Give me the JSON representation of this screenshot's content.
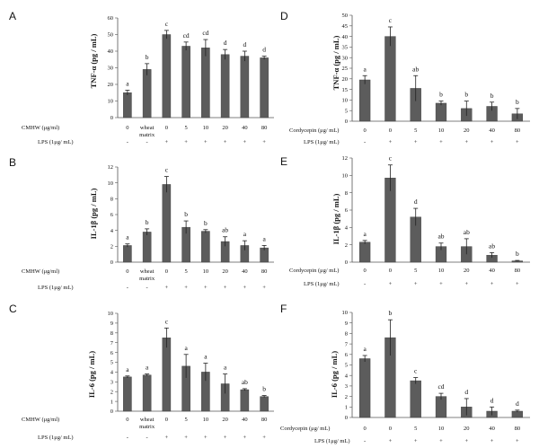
{
  "chart_data": [
    {
      "type": "bar",
      "panel": "A",
      "ylabel": "TNF-α (pg / mL)",
      "ylim": [
        0,
        60
      ],
      "yticks": [
        0,
        10,
        20,
        30,
        40,
        50,
        60
      ],
      "dose_label": "CMHW (μg/ml)",
      "dose_values": [
        "0",
        "wheat\nmatrix",
        "0",
        "5",
        "10",
        "20",
        "40",
        "80"
      ],
      "lps_label": "LPS (1μg/ mL)",
      "lps_values": [
        "-",
        "-",
        "+",
        "+",
        "+",
        "+",
        "+",
        "+"
      ],
      "values": [
        15,
        29,
        50,
        43,
        42,
        38,
        37,
        36
      ],
      "errors": [
        1.5,
        3.5,
        2.5,
        2.5,
        5,
        3,
        3,
        1
      ],
      "letters": [
        "a",
        "b",
        "c",
        "cd",
        "cd",
        "d",
        "d",
        "d"
      ]
    },
    {
      "type": "bar",
      "panel": "B",
      "ylabel": "IL-1β (pg / mL)",
      "ylim": [
        0,
        12
      ],
      "yticks": [
        0,
        2,
        4,
        6,
        8,
        10,
        12
      ],
      "dose_label": "CMHW (μg/ml)",
      "dose_values": [
        "0",
        "wheat\nmatrix",
        "0",
        "5",
        "10",
        "20",
        "40",
        "80"
      ],
      "lps_label": "LPS (1μg/ mL)",
      "lps_values": [
        "-",
        "-",
        "+",
        "+",
        "+",
        "+",
        "+",
        "+"
      ],
      "values": [
        2.1,
        3.8,
        9.8,
        4.4,
        3.9,
        2.6,
        2.1,
        1.8
      ],
      "errors": [
        0.2,
        0.4,
        1.0,
        0.8,
        0.2,
        0.6,
        0.6,
        0.3
      ],
      "letters": [
        "a",
        "b",
        "c",
        "b",
        "b",
        "ab",
        "a",
        "a"
      ]
    },
    {
      "type": "bar",
      "panel": "C",
      "ylabel": "IL-6 (pg / mL)",
      "ylim": [
        0,
        10
      ],
      "yticks": [
        0,
        1,
        2,
        3,
        4,
        5,
        6,
        7,
        8,
        9,
        10
      ],
      "dose_label": "CMHW (μg/ml)",
      "dose_values": [
        "0",
        "wheat\nmatrix",
        "0",
        "5",
        "10",
        "20",
        "40",
        "80"
      ],
      "lps_label": "LPS (1μg/ mL)",
      "lps_values": [
        "-",
        "-",
        "+",
        "+",
        "+",
        "+",
        "+",
        "+"
      ],
      "values": [
        3.5,
        3.7,
        7.5,
        4.6,
        4.0,
        2.8,
        2.2,
        1.5
      ],
      "errors": [
        0.1,
        0.1,
        1.0,
        1.2,
        0.9,
        1.0,
        0.1,
        0.1
      ],
      "letters": [
        "a",
        "a",
        "c",
        "a",
        "a",
        "a",
        "ab",
        "b"
      ]
    },
    {
      "type": "bar",
      "panel": "D",
      "ylabel": "TNF-α (pg / mL)",
      "ylim": [
        0,
        50
      ],
      "yticks": [
        0,
        5,
        10,
        15,
        20,
        25,
        30,
        35,
        40,
        45,
        50
      ],
      "dose_label": "Cordycepin (μg/ mL)",
      "dose_values": [
        "0",
        "0",
        "5",
        "10",
        "20",
        "40",
        "80"
      ],
      "lps_label": "LPS (1μg/ mL)",
      "lps_values": [
        "-",
        "+",
        "+",
        "+",
        "+",
        "+",
        "+"
      ],
      "values": [
        19.5,
        40,
        15.5,
        8.5,
        6,
        7,
        3.5
      ],
      "errors": [
        2,
        4.5,
        6,
        1,
        3.5,
        2,
        2.5
      ],
      "letters": [
        "a",
        "c",
        "ab",
        "b",
        "b",
        "b",
        "b"
      ]
    },
    {
      "type": "bar",
      "panel": "E",
      "ylabel": "IL-1β (pg / mL)",
      "ylim": [
        0,
        12
      ],
      "yticks": [
        0,
        2,
        4,
        6,
        8,
        10,
        12
      ],
      "dose_label": "Cordycepin (μg/ mL)",
      "dose_values": [
        "0",
        "0",
        "5",
        "10",
        "20",
        "40",
        "80"
      ],
      "lps_label": "LPS (1μg/ mL)",
      "lps_values": [
        "-",
        "+",
        "+",
        "+",
        "+",
        "+",
        "+"
      ],
      "values": [
        2.3,
        9.7,
        5.2,
        1.8,
        1.8,
        0.8,
        0.15
      ],
      "errors": [
        0.2,
        1.5,
        1.0,
        0.4,
        0.9,
        0.3,
        0.05
      ],
      "letters": [
        "a",
        "c",
        "d",
        "ab",
        "ab",
        "ab",
        "b"
      ]
    },
    {
      "type": "bar",
      "panel": "F",
      "ylabel": "IL-6 (pg / mL)",
      "ylim": [
        0,
        10
      ],
      "yticks": [
        0,
        1,
        2,
        3,
        4,
        5,
        6,
        7,
        8,
        9,
        10
      ],
      "dose_label": "Cordycepin (μg/ mL)",
      "dose_values": [
        "0",
        "0",
        "5",
        "10",
        "20",
        "40",
        "80"
      ],
      "lps_label": "LPS (1μg/ mL)",
      "lps_values": [
        "-",
        "+",
        "+",
        "+",
        "+",
        "+",
        "+"
      ],
      "values": [
        5.6,
        7.6,
        3.5,
        2.0,
        1.0,
        0.6,
        0.6
      ],
      "errors": [
        0.3,
        1.7,
        0.3,
        0.3,
        0.8,
        0.4,
        0.1
      ],
      "letters": [
        "a",
        "b",
        "c",
        "cd",
        "d",
        "d",
        "d"
      ]
    }
  ]
}
